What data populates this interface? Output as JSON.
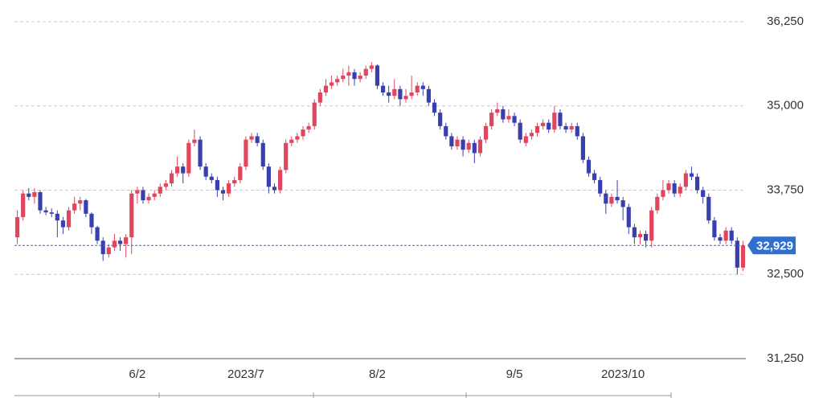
{
  "chart_data": {
    "type": "candlestick",
    "up_color": "#e0475f",
    "down_color": "#3a3fae",
    "grid": true,
    "ylim": [
      31250,
      36250
    ],
    "yticks": [
      {
        "value": 31250,
        "label": "31,250"
      },
      {
        "value": 32500,
        "label": "32,500"
      },
      {
        "value": 33750,
        "label": "33,750"
      },
      {
        "value": 35000,
        "label": "35,000"
      },
      {
        "value": 36250,
        "label": "36,250"
      }
    ],
    "last_price": {
      "value": 32929,
      "label": "32,929"
    },
    "categories": [
      null,
      null,
      null,
      null,
      null,
      null,
      null,
      null,
      null,
      null,
      null,
      null,
      null,
      null,
      null,
      null,
      null,
      null,
      null,
      null,
      null,
      "6/2",
      null,
      null,
      null,
      null,
      null,
      null,
      null,
      null,
      null,
      null,
      null,
      null,
      null,
      null,
      null,
      null,
      null,
      null,
      "2023/7",
      null,
      null,
      null,
      null,
      null,
      null,
      null,
      null,
      null,
      null,
      null,
      null,
      null,
      null,
      null,
      null,
      null,
      null,
      null,
      null,
      null,
      null,
      "8/2",
      null,
      null,
      null,
      null,
      null,
      null,
      null,
      null,
      null,
      null,
      null,
      null,
      null,
      null,
      null,
      null,
      null,
      null,
      null,
      null,
      null,
      null,
      null,
      "9/5",
      null,
      null,
      null,
      null,
      null,
      null,
      null,
      null,
      null,
      null,
      null,
      null,
      null,
      null,
      null,
      null,
      null,
      null,
      "2023/10",
      null,
      null,
      null,
      null,
      null,
      null,
      null,
      null,
      null,
      null,
      null,
      null,
      null,
      null,
      null,
      null,
      null,
      null,
      null,
      null,
      null
    ],
    "open": [
      33050,
      33350,
      33700,
      33650,
      33720,
      33450,
      33420,
      33400,
      33300,
      33200,
      33450,
      33550,
      33600,
      33400,
      33200,
      33000,
      32800,
      32900,
      33000,
      32950,
      33050,
      33700,
      33750,
      33600,
      33650,
      33700,
      33800,
      33850,
      34000,
      34100,
      34000,
      34450,
      34500,
      34100,
      33950,
      33900,
      33750,
      33700,
      33850,
      33900,
      34100,
      34500,
      34550,
      34450,
      34100,
      33800,
      33750,
      34050,
      34450,
      34500,
      34550,
      34650,
      34700,
      35050,
      35200,
      35300,
      35350,
      35400,
      35450,
      35500,
      35400,
      35450,
      35550,
      35600,
      35300,
      35200,
      35150,
      35250,
      35100,
      35150,
      35200,
      35300,
      35250,
      35050,
      34900,
      34700,
      34550,
      34400,
      34500,
      34350,
      34450,
      34300,
      34500,
      34700,
      34900,
      34950,
      34800,
      34850,
      34750,
      34450,
      34550,
      34600,
      34700,
      34750,
      34650,
      34900,
      34700,
      34650,
      34700,
      34550,
      34200,
      34000,
      33900,
      33700,
      33550,
      33650,
      33600,
      33500,
      33200,
      33050,
      33100,
      33000,
      33450,
      33650,
      33750,
      33850,
      33700,
      33800,
      34000,
      33950,
      33750,
      33650,
      33300,
      33050,
      33000,
      33150,
      33000,
      32600
    ],
    "high": [
      33450,
      33750,
      33780,
      33780,
      33750,
      33500,
      33480,
      33450,
      33350,
      33500,
      33650,
      33650,
      33620,
      33420,
      33220,
      33050,
      32950,
      33100,
      33050,
      33100,
      33750,
      33800,
      33800,
      33700,
      33750,
      33850,
      33900,
      34050,
      34250,
      34150,
      34500,
      34650,
      34550,
      34150,
      34000,
      33950,
      33800,
      33900,
      33950,
      34150,
      34550,
      34600,
      34600,
      34500,
      34150,
      33850,
      34100,
      34500,
      34550,
      34600,
      34700,
      34750,
      35100,
      35250,
      35400,
      35450,
      35450,
      35550,
      35600,
      35550,
      35500,
      35600,
      35650,
      35620,
      35350,
      35300,
      35400,
      35300,
      35250,
      35450,
      35350,
      35350,
      35300,
      35100,
      34950,
      34750,
      34600,
      34550,
      34550,
      34500,
      34500,
      34550,
      34750,
      34950,
      35050,
      35000,
      34950,
      34900,
      34800,
      34600,
      34650,
      34750,
      34800,
      34800,
      35000,
      34950,
      34750,
      34750,
      34750,
      34600,
      34250,
      34050,
      33950,
      33750,
      33700,
      33900,
      33650,
      33550,
      33250,
      33150,
      33150,
      33500,
      33700,
      33900,
      33900,
      33900,
      33850,
      34050,
      34100,
      34000,
      33800,
      33700,
      33350,
      33100,
      33200,
      33200,
      33050,
      33000
    ],
    "low": [
      32950,
      33300,
      33600,
      33550,
      33400,
      33380,
      33350,
      33050,
      33100,
      33150,
      33400,
      33450,
      33350,
      33100,
      32950,
      32700,
      32750,
      32850,
      32850,
      32750,
      32800,
      33550,
      33550,
      33550,
      33600,
      33650,
      33750,
      33800,
      33950,
      33850,
      33950,
      34400,
      34050,
      33900,
      33850,
      33650,
      33600,
      33650,
      33800,
      33850,
      34050,
      34450,
      34400,
      34050,
      33700,
      33700,
      33700,
      34000,
      34400,
      34450,
      34500,
      34600,
      34650,
      35000,
      35150,
      35250,
      35300,
      35350,
      35300,
      35300,
      35350,
      35400,
      35500,
      35250,
      35150,
      35050,
      35100,
      35000,
      35050,
      35100,
      35150,
      35150,
      35000,
      34850,
      34650,
      34500,
      34350,
      34350,
      34250,
      34300,
      34150,
      34250,
      34450,
      34650,
      34850,
      34750,
      34750,
      34700,
      34450,
      34400,
      34500,
      34550,
      34650,
      34600,
      34600,
      34650,
      34600,
      34600,
      34500,
      34150,
      33950,
      33850,
      33650,
      33400,
      33500,
      33550,
      33300,
      33100,
      32950,
      32950,
      32900,
      32900,
      33400,
      33600,
      33700,
      33650,
      33650,
      33750,
      33900,
      33700,
      33550,
      33250,
      33000,
      32950,
      32950,
      32950,
      32500,
      32550
    ],
    "close": [
      33350,
      33700,
      33650,
      33720,
      33450,
      33420,
      33400,
      33300,
      33200,
      33450,
      33550,
      33600,
      33400,
      33200,
      33000,
      32800,
      32900,
      33000,
      32950,
      33050,
      33700,
      33750,
      33600,
      33650,
      33700,
      33800,
      33850,
      34000,
      34100,
      34000,
      34450,
      34500,
      34100,
      33950,
      33900,
      33750,
      33700,
      33850,
      33900,
      34100,
      34500,
      34550,
      34450,
      34100,
      33800,
      33750,
      34050,
      34450,
      34500,
      34550,
      34650,
      34700,
      35050,
      35200,
      35300,
      35350,
      35400,
      35450,
      35500,
      35400,
      35450,
      35550,
      35600,
      35300,
      35200,
      35150,
      35250,
      35100,
      35150,
      35200,
      35300,
      35250,
      35050,
      34900,
      34700,
      34550,
      34400,
      34500,
      34350,
      34450,
      34300,
      34500,
      34700,
      34900,
      34950,
      34800,
      34850,
      34750,
      34500,
      34550,
      34600,
      34700,
      34750,
      34650,
      34900,
      34700,
      34650,
      34700,
      34550,
      34200,
      34000,
      33900,
      33700,
      33550,
      33650,
      33600,
      33500,
      33200,
      33050,
      33100,
      33000,
      33450,
      33650,
      33750,
      33850,
      33700,
      33800,
      34000,
      33950,
      33750,
      33650,
      33300,
      33050,
      33000,
      33150,
      33000,
      32600,
      32929
    ]
  }
}
